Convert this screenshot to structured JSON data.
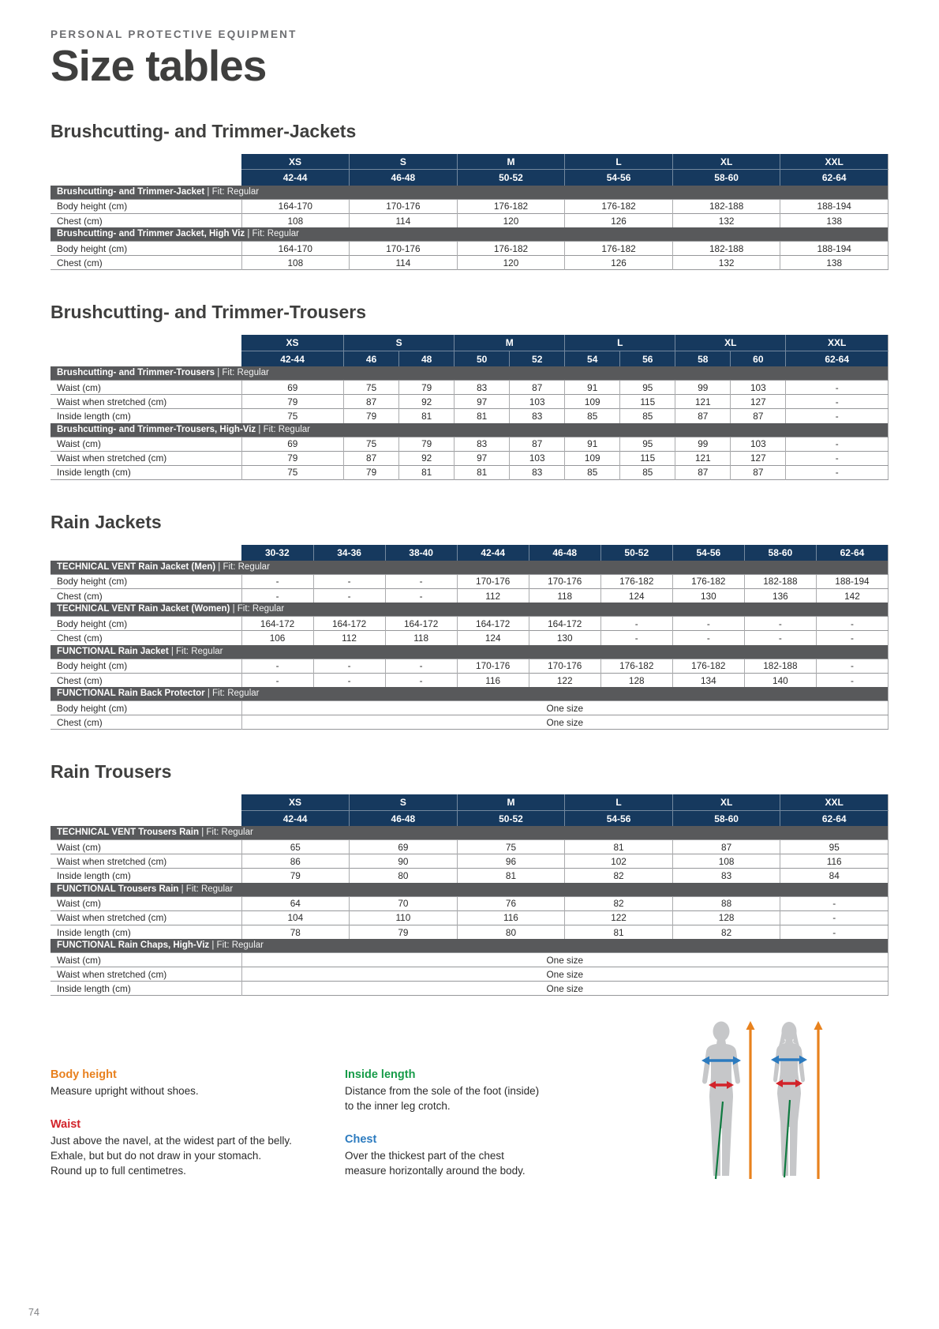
{
  "page": {
    "eyebrow": "PERSONAL PROTECTIVE EQUIPMENT",
    "title": "Size tables",
    "page_number": "74"
  },
  "colors": {
    "header_navy": "#16395E",
    "section_gray": "#58595B"
  },
  "tables": [
    {
      "id": "jackets",
      "heading": "Brushcutting- and Trimmer-Jackets",
      "size_labels": [
        {
          "label": "XS",
          "span": 1
        },
        {
          "label": "S",
          "span": 1
        },
        {
          "label": "M",
          "span": 1
        },
        {
          "label": "L",
          "span": 1
        },
        {
          "label": "XL",
          "span": 1
        },
        {
          "label": "XXL",
          "span": 1
        }
      ],
      "size_numbers": [
        "42-44",
        "46-48",
        "50-52",
        "54-56",
        "58-60",
        "62-64"
      ],
      "sections": [
        {
          "title": "Brushcutting- and Trimmer-Jacket",
          "fit": "Fit: Regular",
          "rows": [
            {
              "label": "Body height (cm)",
              "values": [
                "164-170",
                "170-176",
                "176-182",
                "176-182",
                "182-188",
                "188-194"
              ]
            },
            {
              "label": "Chest (cm)",
              "values": [
                "108",
                "114",
                "120",
                "126",
                "132",
                "138"
              ]
            }
          ]
        },
        {
          "title": "Brushcutting- and Trimmer Jacket, High Viz",
          "fit": "Fit: Regular",
          "rows": [
            {
              "label": "Body height (cm)",
              "values": [
                "164-170",
                "170-176",
                "176-182",
                "176-182",
                "182-188",
                "188-194"
              ]
            },
            {
              "label": "Chest (cm)",
              "values": [
                "108",
                "114",
                "120",
                "126",
                "132",
                "138"
              ]
            }
          ]
        }
      ]
    },
    {
      "id": "trousers",
      "heading": "Brushcutting- and Trimmer-Trousers",
      "size_labels": [
        {
          "label": "XS",
          "span": 1
        },
        {
          "label": "S",
          "span": 2
        },
        {
          "label": "M",
          "span": 2
        },
        {
          "label": "L",
          "span": 2
        },
        {
          "label": "XL",
          "span": 2
        },
        {
          "label": "XXL",
          "span": 1
        }
      ],
      "size_numbers": [
        "42-44",
        "46",
        "48",
        "50",
        "52",
        "54",
        "56",
        "58",
        "60",
        "62-64"
      ],
      "sections": [
        {
          "title": "Brushcutting- and Trimmer-Trousers",
          "fit": "Fit: Regular",
          "rows": [
            {
              "label": "Waist (cm)",
              "values": [
                "69",
                "75",
                "79",
                "83",
                "87",
                "91",
                "95",
                "99",
                "103",
                "-"
              ]
            },
            {
              "label": "Waist when stretched (cm)",
              "values": [
                "79",
                "87",
                "92",
                "97",
                "103",
                "109",
                "115",
                "121",
                "127",
                "-"
              ]
            },
            {
              "label": "Inside length (cm)",
              "values": [
                "75",
                "79",
                "81",
                "81",
                "83",
                "85",
                "85",
                "87",
                "87",
                "-"
              ]
            }
          ]
        },
        {
          "title": "Brushcutting- and Trimmer-Trousers, High-Viz",
          "fit": "Fit: Regular",
          "rows": [
            {
              "label": "Waist (cm)",
              "values": [
                "69",
                "75",
                "79",
                "83",
                "87",
                "91",
                "95",
                "99",
                "103",
                "-"
              ]
            },
            {
              "label": "Waist when stretched (cm)",
              "values": [
                "79",
                "87",
                "92",
                "97",
                "103",
                "109",
                "115",
                "121",
                "127",
                "-"
              ]
            },
            {
              "label": "Inside length (cm)",
              "values": [
                "75",
                "79",
                "81",
                "81",
                "83",
                "85",
                "85",
                "87",
                "87",
                "-"
              ]
            }
          ]
        }
      ]
    },
    {
      "id": "rain-jackets",
      "heading": "Rain Jackets",
      "size_numbers": [
        "30-32",
        "34-36",
        "38-40",
        "42-44",
        "46-48",
        "50-52",
        "54-56",
        "58-60",
        "62-64"
      ],
      "sections": [
        {
          "title": "TECHNICAL VENT Rain Jacket (Men)",
          "fit": "Fit: Regular",
          "rows": [
            {
              "label": "Body height (cm)",
              "values": [
                "-",
                "-",
                "-",
                "170-176",
                "170-176",
                "176-182",
                "176-182",
                "182-188",
                "188-194"
              ]
            },
            {
              "label": "Chest (cm)",
              "values": [
                "-",
                "-",
                "-",
                "112",
                "118",
                "124",
                "130",
                "136",
                "142"
              ]
            }
          ]
        },
        {
          "title": "TECHNICAL VENT Rain Jacket (Women)",
          "fit": "Fit: Regular",
          "rows": [
            {
              "label": "Body height (cm)",
              "values": [
                "164-172",
                "164-172",
                "164-172",
                "164-172",
                "164-172",
                "-",
                "-",
                "-",
                "-"
              ]
            },
            {
              "label": "Chest (cm)",
              "values": [
                "106",
                "112",
                "118",
                "124",
                "130",
                "-",
                "-",
                "-",
                "-"
              ]
            }
          ]
        },
        {
          "title": "FUNCTIONAL Rain Jacket",
          "fit": "Fit: Regular",
          "rows": [
            {
              "label": "Body height (cm)",
              "values": [
                "-",
                "-",
                "-",
                "170-176",
                "170-176",
                "176-182",
                "176-182",
                "182-188",
                "-"
              ]
            },
            {
              "label": "Chest (cm)",
              "values": [
                "-",
                "-",
                "-",
                "116",
                "122",
                "128",
                "134",
                "140",
                "-"
              ]
            }
          ]
        },
        {
          "title": "FUNCTIONAL Rain Back Protector",
          "fit": "Fit: Regular",
          "rows": [
            {
              "label": "Body height (cm)",
              "one_size": "One size"
            },
            {
              "label": "Chest (cm)",
              "one_size": "One size"
            }
          ]
        }
      ]
    },
    {
      "id": "rain-trousers",
      "heading": "Rain Trousers",
      "size_labels": [
        {
          "label": "XS",
          "span": 1
        },
        {
          "label": "S",
          "span": 1
        },
        {
          "label": "M",
          "span": 1
        },
        {
          "label": "L",
          "span": 1
        },
        {
          "label": "XL",
          "span": 1
        },
        {
          "label": "XXL",
          "span": 1
        }
      ],
      "size_numbers": [
        "42-44",
        "46-48",
        "50-52",
        "54-56",
        "58-60",
        "62-64"
      ],
      "sections": [
        {
          "title": "TECHNICAL VENT Trousers Rain",
          "fit": "Fit: Regular",
          "rows": [
            {
              "label": "Waist (cm)",
              "values": [
                "65",
                "69",
                "75",
                "81",
                "87",
                "95"
              ]
            },
            {
              "label": "Waist when stretched (cm)",
              "values": [
                "86",
                "90",
                "96",
                "102",
                "108",
                "116"
              ]
            },
            {
              "label": "Inside length (cm)",
              "values": [
                "79",
                "80",
                "81",
                "82",
                "83",
                "84"
              ]
            }
          ]
        },
        {
          "title": "FUNCTIONAL Trousers Rain",
          "fit": "Fit: Regular",
          "rows": [
            {
              "label": "Waist (cm)",
              "values": [
                "64",
                "70",
                "76",
                "82",
                "88",
                "-"
              ]
            },
            {
              "label": "Waist when stretched (cm)",
              "values": [
                "104",
                "110",
                "116",
                "122",
                "128",
                "-"
              ]
            },
            {
              "label": "Inside length (cm)",
              "values": [
                "78",
                "79",
                "80",
                "81",
                "82",
                "-"
              ]
            }
          ]
        },
        {
          "title": "FUNCTIONAL Rain Chaps, High-Viz",
          "fit": "Fit: Regular",
          "rows": [
            {
              "label": "Waist (cm)",
              "one_size": "One size"
            },
            {
              "label": "Waist when stretched (cm)",
              "one_size": "One size"
            },
            {
              "label": "Inside length (cm)",
              "one_size": "One size"
            }
          ]
        }
      ]
    }
  ],
  "notes": [
    {
      "id": "body-height",
      "title": "Body height",
      "color": "#E8801E",
      "column": 1,
      "text": "Measure upright without shoes."
    },
    {
      "id": "waist",
      "title": "Waist",
      "color": "#D2232A",
      "column": 1,
      "text": "Just above the navel, at the widest part of the belly. Exhale, but but do not draw in your stomach. Round up to full centimetres."
    },
    {
      "id": "inside-length",
      "title": "Inside length",
      "color": "#179C49",
      "column": 2,
      "text": "Distance from the sole of the foot (inside) to the inner leg crotch."
    },
    {
      "id": "chest",
      "title": "Chest",
      "color": "#2C7BBF",
      "column": 2,
      "text": "Over the thickest part of the chest measure horizontally around the body."
    }
  ],
  "diagram": {
    "figure_color": "#C6C7C9",
    "body_height_color": "#E8821E",
    "chest_color": "#2C7BBF",
    "waist_color": "#D2232A",
    "inside_length_color": "#0F7A40"
  }
}
